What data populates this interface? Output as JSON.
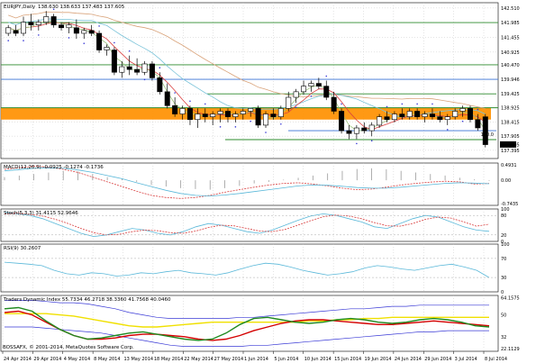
{
  "chart_data": [
    {
      "type": "candlestick",
      "title": "EURJPY,Daily",
      "ohlc_header": "138.630 138.633 137.483 137.605",
      "ylim": [
        137.1,
        142.7
      ],
      "yticks": [
        "142.510",
        "141.985",
        "141.455",
        "140.925",
        "140.470",
        "139.946",
        "139.425",
        "138.925",
        "138.415",
        "137.905",
        "137.395"
      ],
      "current_price_label": "137.605",
      "ref_line_label": "100.0",
      "horizontal_levels": [
        {
          "value": 141.985,
          "color": "#2e8b2e"
        },
        {
          "value": 140.47,
          "color": "#2e8b2e"
        },
        {
          "value": 139.946,
          "color": "#3a73d6"
        },
        {
          "value": 139.425,
          "color": "#2e8b2e"
        },
        {
          "value": 138.925,
          "color": "#2e8b2e"
        },
        {
          "value": 138.1,
          "color": "#3a73d6"
        },
        {
          "value": 137.78,
          "color": "#2e8b2e"
        }
      ],
      "highlight_zone": {
        "from": 138.5,
        "to": 138.92,
        "color": "#ff9000"
      },
      "candles": [
        {
          "o": 141.6,
          "h": 141.9,
          "l": 141.5,
          "c": 141.8
        },
        {
          "o": 141.7,
          "h": 141.9,
          "l": 141.5,
          "c": 141.6
        },
        {
          "o": 141.6,
          "h": 142.2,
          "l": 141.5,
          "c": 142.0
        },
        {
          "o": 142.0,
          "h": 142.3,
          "l": 141.7,
          "c": 141.9
        },
        {
          "o": 141.9,
          "h": 142.1,
          "l": 141.7,
          "c": 142.0
        },
        {
          "o": 142.0,
          "h": 142.4,
          "l": 141.9,
          "c": 142.2
        },
        {
          "o": 142.2,
          "h": 142.3,
          "l": 141.8,
          "c": 141.9
        },
        {
          "o": 141.9,
          "h": 142.0,
          "l": 141.7,
          "c": 141.8
        },
        {
          "o": 141.8,
          "h": 142.0,
          "l": 141.6,
          "c": 141.9
        },
        {
          "o": 141.8,
          "h": 142.1,
          "l": 141.4,
          "c": 141.6
        },
        {
          "o": 141.6,
          "h": 141.8,
          "l": 141.4,
          "c": 141.7
        },
        {
          "o": 141.7,
          "h": 141.9,
          "l": 141.5,
          "c": 141.6
        },
        {
          "o": 141.6,
          "h": 141.7,
          "l": 140.9,
          "c": 141.0
        },
        {
          "o": 141.0,
          "h": 141.2,
          "l": 140.8,
          "c": 141.1
        },
        {
          "o": 141.0,
          "h": 141.1,
          "l": 140.1,
          "c": 140.2
        },
        {
          "o": 140.2,
          "h": 140.6,
          "l": 140.0,
          "c": 140.4
        },
        {
          "o": 140.4,
          "h": 140.8,
          "l": 140.1,
          "c": 140.3
        },
        {
          "o": 140.3,
          "h": 140.7,
          "l": 140.1,
          "c": 140.2
        },
        {
          "o": 140.2,
          "h": 140.6,
          "l": 140.1,
          "c": 140.5
        },
        {
          "o": 140.5,
          "h": 140.6,
          "l": 139.9,
          "c": 140.0
        },
        {
          "o": 140.0,
          "h": 140.2,
          "l": 139.4,
          "c": 139.5
        },
        {
          "o": 139.5,
          "h": 139.8,
          "l": 138.9,
          "c": 139.0
        },
        {
          "o": 139.0,
          "h": 139.3,
          "l": 138.6,
          "c": 138.7
        },
        {
          "o": 138.7,
          "h": 139.0,
          "l": 138.5,
          "c": 138.9
        },
        {
          "o": 138.9,
          "h": 139.0,
          "l": 138.3,
          "c": 138.5
        },
        {
          "o": 138.5,
          "h": 138.9,
          "l": 138.2,
          "c": 138.7
        },
        {
          "o": 138.7,
          "h": 138.9,
          "l": 138.4,
          "c": 138.6
        },
        {
          "o": 138.6,
          "h": 138.8,
          "l": 138.3,
          "c": 138.7
        },
        {
          "o": 138.7,
          "h": 138.9,
          "l": 138.4,
          "c": 138.8
        },
        {
          "o": 138.8,
          "h": 138.9,
          "l": 138.4,
          "c": 138.6
        },
        {
          "o": 138.6,
          "h": 138.8,
          "l": 138.4,
          "c": 138.7
        },
        {
          "o": 138.7,
          "h": 138.9,
          "l": 138.5,
          "c": 138.8
        },
        {
          "o": 138.8,
          "h": 138.9,
          "l": 138.6,
          "c": 138.9
        },
        {
          "o": 138.9,
          "h": 139.0,
          "l": 138.2,
          "c": 138.3
        },
        {
          "o": 138.3,
          "h": 138.8,
          "l": 138.2,
          "c": 138.7
        },
        {
          "o": 138.7,
          "h": 138.9,
          "l": 138.5,
          "c": 138.6
        },
        {
          "o": 138.6,
          "h": 139.0,
          "l": 138.5,
          "c": 138.9
        },
        {
          "o": 138.9,
          "h": 139.5,
          "l": 138.8,
          "c": 139.3
        },
        {
          "o": 139.3,
          "h": 139.6,
          "l": 139.1,
          "c": 139.5
        },
        {
          "o": 139.5,
          "h": 139.9,
          "l": 139.4,
          "c": 139.7
        },
        {
          "o": 139.7,
          "h": 139.9,
          "l": 139.5,
          "c": 139.8
        },
        {
          "o": 139.8,
          "h": 140.0,
          "l": 139.6,
          "c": 139.7
        },
        {
          "o": 139.7,
          "h": 139.9,
          "l": 139.2,
          "c": 139.3
        },
        {
          "o": 139.3,
          "h": 139.5,
          "l": 138.7,
          "c": 138.8
        },
        {
          "o": 138.8,
          "h": 138.9,
          "l": 138.0,
          "c": 138.1
        },
        {
          "o": 138.1,
          "h": 138.3,
          "l": 137.8,
          "c": 138.0
        },
        {
          "o": 138.0,
          "h": 138.3,
          "l": 137.8,
          "c": 138.2
        },
        {
          "o": 138.2,
          "h": 138.4,
          "l": 138.0,
          "c": 138.1
        },
        {
          "o": 138.1,
          "h": 138.4,
          "l": 137.9,
          "c": 138.3
        },
        {
          "o": 138.3,
          "h": 138.7,
          "l": 138.2,
          "c": 138.6
        },
        {
          "o": 138.6,
          "h": 138.8,
          "l": 138.4,
          "c": 138.5
        },
        {
          "o": 138.5,
          "h": 138.8,
          "l": 138.4,
          "c": 138.7
        },
        {
          "o": 138.7,
          "h": 138.9,
          "l": 138.5,
          "c": 138.6
        },
        {
          "o": 138.6,
          "h": 138.9,
          "l": 138.5,
          "c": 138.8
        },
        {
          "o": 138.8,
          "h": 138.9,
          "l": 138.5,
          "c": 138.6
        },
        {
          "o": 138.6,
          "h": 138.8,
          "l": 138.4,
          "c": 138.7
        },
        {
          "o": 138.7,
          "h": 138.9,
          "l": 138.5,
          "c": 138.6
        },
        {
          "o": 138.6,
          "h": 138.8,
          "l": 138.4,
          "c": 138.5
        },
        {
          "o": 138.5,
          "h": 138.7,
          "l": 138.3,
          "c": 138.6
        },
        {
          "o": 138.6,
          "h": 138.9,
          "l": 138.5,
          "c": 138.8
        },
        {
          "o": 138.8,
          "h": 139.0,
          "l": 138.6,
          "c": 138.9
        },
        {
          "o": 138.9,
          "h": 139.0,
          "l": 138.4,
          "c": 138.5
        },
        {
          "o": 138.5,
          "h": 138.7,
          "l": 138.1,
          "c": 138.2
        },
        {
          "o": 138.6,
          "h": 138.7,
          "l": 137.5,
          "c": 137.6
        }
      ]
    },
    {
      "type": "line",
      "title": "MACD(12,26,9) -0.0925 -0.1274 -0.1736",
      "yticks": [
        "0.4931",
        "0.00",
        "-0.7435"
      ],
      "ylim": [
        -0.8,
        0.55
      ],
      "series": [
        {
          "values": [
            0.35,
            0.4,
            0.45,
            0.42,
            0.35,
            0.25,
            0.1,
            -0.05,
            -0.2,
            -0.35,
            -0.48,
            -0.55,
            -0.58,
            -0.55,
            -0.48,
            -0.38,
            -0.3,
            -0.22,
            -0.15,
            -0.1,
            -0.08,
            -0.12,
            -0.18,
            -0.25,
            -0.3,
            -0.28,
            -0.22,
            -0.15,
            -0.1,
            -0.06,
            -0.03,
            -0.05,
            -0.12,
            -0.1
          ]
        },
        {
          "values": [
            0.3,
            0.34,
            0.38,
            0.4,
            0.38,
            0.33,
            0.25,
            0.15,
            0.05,
            -0.08,
            -0.2,
            -0.32,
            -0.42,
            -0.48,
            -0.5,
            -0.47,
            -0.42,
            -0.36,
            -0.3,
            -0.24,
            -0.18,
            -0.15,
            -0.16,
            -0.19,
            -0.23,
            -0.25,
            -0.25,
            -0.22,
            -0.18,
            -0.14,
            -0.1,
            -0.08,
            -0.09,
            -0.11
          ]
        }
      ],
      "histogram": [
        0.1,
        0.15,
        0.2,
        0.25,
        0.3,
        0.28,
        0.2,
        0.1,
        0.05,
        -0.05,
        -0.15,
        -0.2,
        -0.25,
        -0.28,
        -0.3,
        -0.25,
        -0.18,
        -0.1,
        -0.05,
        0.02,
        0.08,
        0.15,
        0.22,
        0.3,
        0.36,
        0.38,
        0.35,
        0.3,
        0.25,
        0.2,
        0.15,
        0.08,
        0.03,
        -0.02
      ]
    },
    {
      "type": "line",
      "title": "Stoch(5,3,3) 31.4115 52.9646",
      "yticks": [
        "100",
        "80",
        "20",
        "0"
      ],
      "ylim": [
        0,
        100
      ],
      "series": [
        {
          "values": [
            90,
            85,
            80,
            70,
            55,
            40,
            25,
            15,
            20,
            30,
            40,
            35,
            25,
            20,
            30,
            45,
            55,
            50,
            40,
            30,
            25,
            35,
            50,
            65,
            78,
            85,
            80,
            70,
            60,
            45,
            40,
            55,
            70,
            80,
            75,
            60,
            45,
            35,
            31
          ]
        },
        {
          "values": [
            85,
            87,
            83,
            78,
            68,
            55,
            40,
            27,
            20,
            22,
            30,
            35,
            33,
            27,
            25,
            32,
            43,
            50,
            48,
            40,
            32,
            30,
            37,
            50,
            64,
            76,
            81,
            78,
            70,
            58,
            48,
            47,
            55,
            68,
            75,
            72,
            60,
            47,
            53
          ]
        }
      ]
    },
    {
      "type": "line",
      "title": "RSI(9) 30.2607",
      "yticks": [
        "100",
        "70",
        "30",
        "0"
      ],
      "ylim": [
        0,
        100
      ],
      "series": [
        {
          "values": [
            62,
            60,
            58,
            55,
            45,
            38,
            35,
            40,
            38,
            33,
            35,
            40,
            38,
            42,
            45,
            40,
            38,
            35,
            40,
            48,
            55,
            60,
            58,
            52,
            45,
            40,
            35,
            38,
            42,
            50,
            55,
            52,
            48,
            45,
            50,
            55,
            58,
            52,
            45,
            30
          ]
        }
      ]
    },
    {
      "type": "line",
      "title": "Traders Dynamic Index 55.7334 46.2718 38.3360 41.7568 40.0460",
      "yticks": [
        "64.1575",
        "50",
        "32",
        "22.1129"
      ],
      "ylim": [
        20,
        66
      ],
      "series": [
        {
          "values": [
            62,
            62,
            62,
            61,
            60,
            60,
            59,
            57,
            55,
            52,
            50,
            48,
            47,
            47,
            47,
            47,
            47,
            48,
            48,
            49,
            50,
            51,
            52,
            53,
            54,
            55,
            55,
            56,
            57,
            57,
            58,
            58,
            58,
            58,
            58,
            58
          ]
        },
        {
          "values": [
            40,
            40,
            40,
            39,
            38,
            37,
            36,
            35,
            33,
            31,
            29,
            27,
            25,
            24,
            24,
            24,
            24,
            24,
            25,
            25,
            26,
            27,
            28,
            29,
            30,
            31,
            32,
            33,
            34,
            35,
            36,
            36,
            37,
            37,
            37,
            37
          ]
        },
        {
          "values": [
            51,
            51,
            51,
            51,
            50,
            49,
            47,
            45,
            43,
            41,
            40,
            40,
            41,
            42,
            43,
            44,
            44,
            44,
            44,
            44,
            44,
            44,
            45,
            45,
            46,
            46,
            47,
            47,
            48,
            48,
            48,
            48,
            48,
            48,
            48,
            48
          ]
        },
        {
          "values": [
            52,
            53,
            50,
            44,
            38,
            33,
            30,
            30,
            31,
            33,
            34,
            34,
            33,
            32,
            30,
            29,
            30,
            33,
            37,
            40,
            43,
            45,
            46,
            46,
            45,
            44,
            43,
            42,
            42,
            43,
            44,
            45,
            44,
            43,
            42,
            41
          ]
        },
        {
          "values": [
            55,
            56,
            53,
            45,
            38,
            33,
            30,
            31,
            33,
            35,
            36,
            34,
            32,
            30,
            29,
            30,
            35,
            42,
            47,
            48,
            46,
            44,
            43,
            44,
            46,
            47,
            46,
            44,
            43,
            44,
            46,
            47,
            46,
            44,
            41,
            40
          ]
        }
      ]
    }
  ],
  "x_axis_labels": [
    "24 Apr 2014",
    "29 Apr 2014",
    "4 May 2014",
    "8 May 2014",
    "13 May 2014",
    "18 May 2014",
    "22 May 2014",
    "27 May 2014",
    "1 Jun 2014",
    "5 Jun 2014",
    "10 Jun 2014",
    "15 Jun 2014",
    "19 Jun 2014",
    "24 Jun 2014",
    "29 Jun 2014",
    "3 Jul 2014",
    "8 Jul 2014"
  ],
  "copyright": "BOSSAFX, © 2001-2014, MetaQuotes Software Corp.",
  "colors": {
    "bull": "#ffffff",
    "bear": "#000000",
    "zone": "#ff9000",
    "green_level": "#2e8b2e",
    "blue_level": "#3a73d6",
    "grid": "#c8c8c8"
  }
}
